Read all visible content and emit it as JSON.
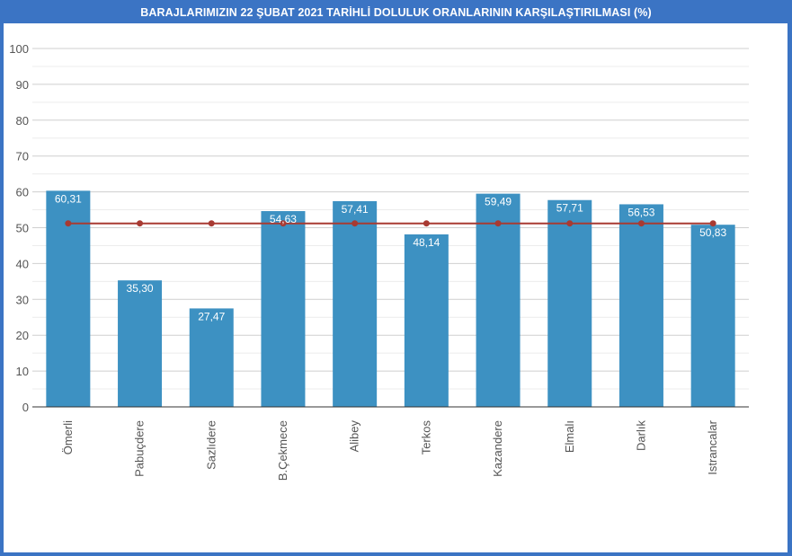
{
  "title": "BARAJLARIMIZIN 22 ŞUBAT 2021 TARİHLİ DOLULUK ORANLARININ KARŞILAŞTIRILMASI (%)",
  "colors": {
    "frame": "#3b74c4",
    "bar": "#3d91c2",
    "line": "#a83a32",
    "grid": "#cfcfcf",
    "axis_text": "#555555"
  },
  "chart_data": {
    "type": "bar",
    "title": "BARAJLARIMIZIN 22 ŞUBAT 2021 TARİHLİ DOLULUK ORANLARININ KARŞILAŞTIRILMASI (%)",
    "xlabel": "",
    "ylabel": "",
    "ylim": [
      0,
      100
    ],
    "yticks": [
      0,
      10,
      20,
      30,
      40,
      50,
      60,
      70,
      80,
      90,
      100
    ],
    "grid": true,
    "legend": "none",
    "categories": [
      "Ömerli",
      "Pabuçdere",
      "Sazlıdere",
      "B.Çekmece",
      "Alibey",
      "Terkos",
      "Kazandere",
      "Elmalı",
      "Darlık",
      "Istrancalar"
    ],
    "series": [
      {
        "type": "bar",
        "values": [
          60.31,
          35.3,
          27.47,
          54.63,
          57.41,
          48.14,
          59.49,
          57.71,
          56.53,
          50.83
        ],
        "labels": [
          "60,31",
          "35,30",
          "27,47",
          "54,63",
          "57,41",
          "48,14",
          "59,49",
          "57,71",
          "56,53",
          "50,83"
        ]
      },
      {
        "type": "line",
        "values": [
          51.2,
          51.2,
          51.2,
          51.2,
          51.2,
          51.2,
          51.2,
          51.2,
          51.2,
          51.2
        ]
      }
    ]
  }
}
